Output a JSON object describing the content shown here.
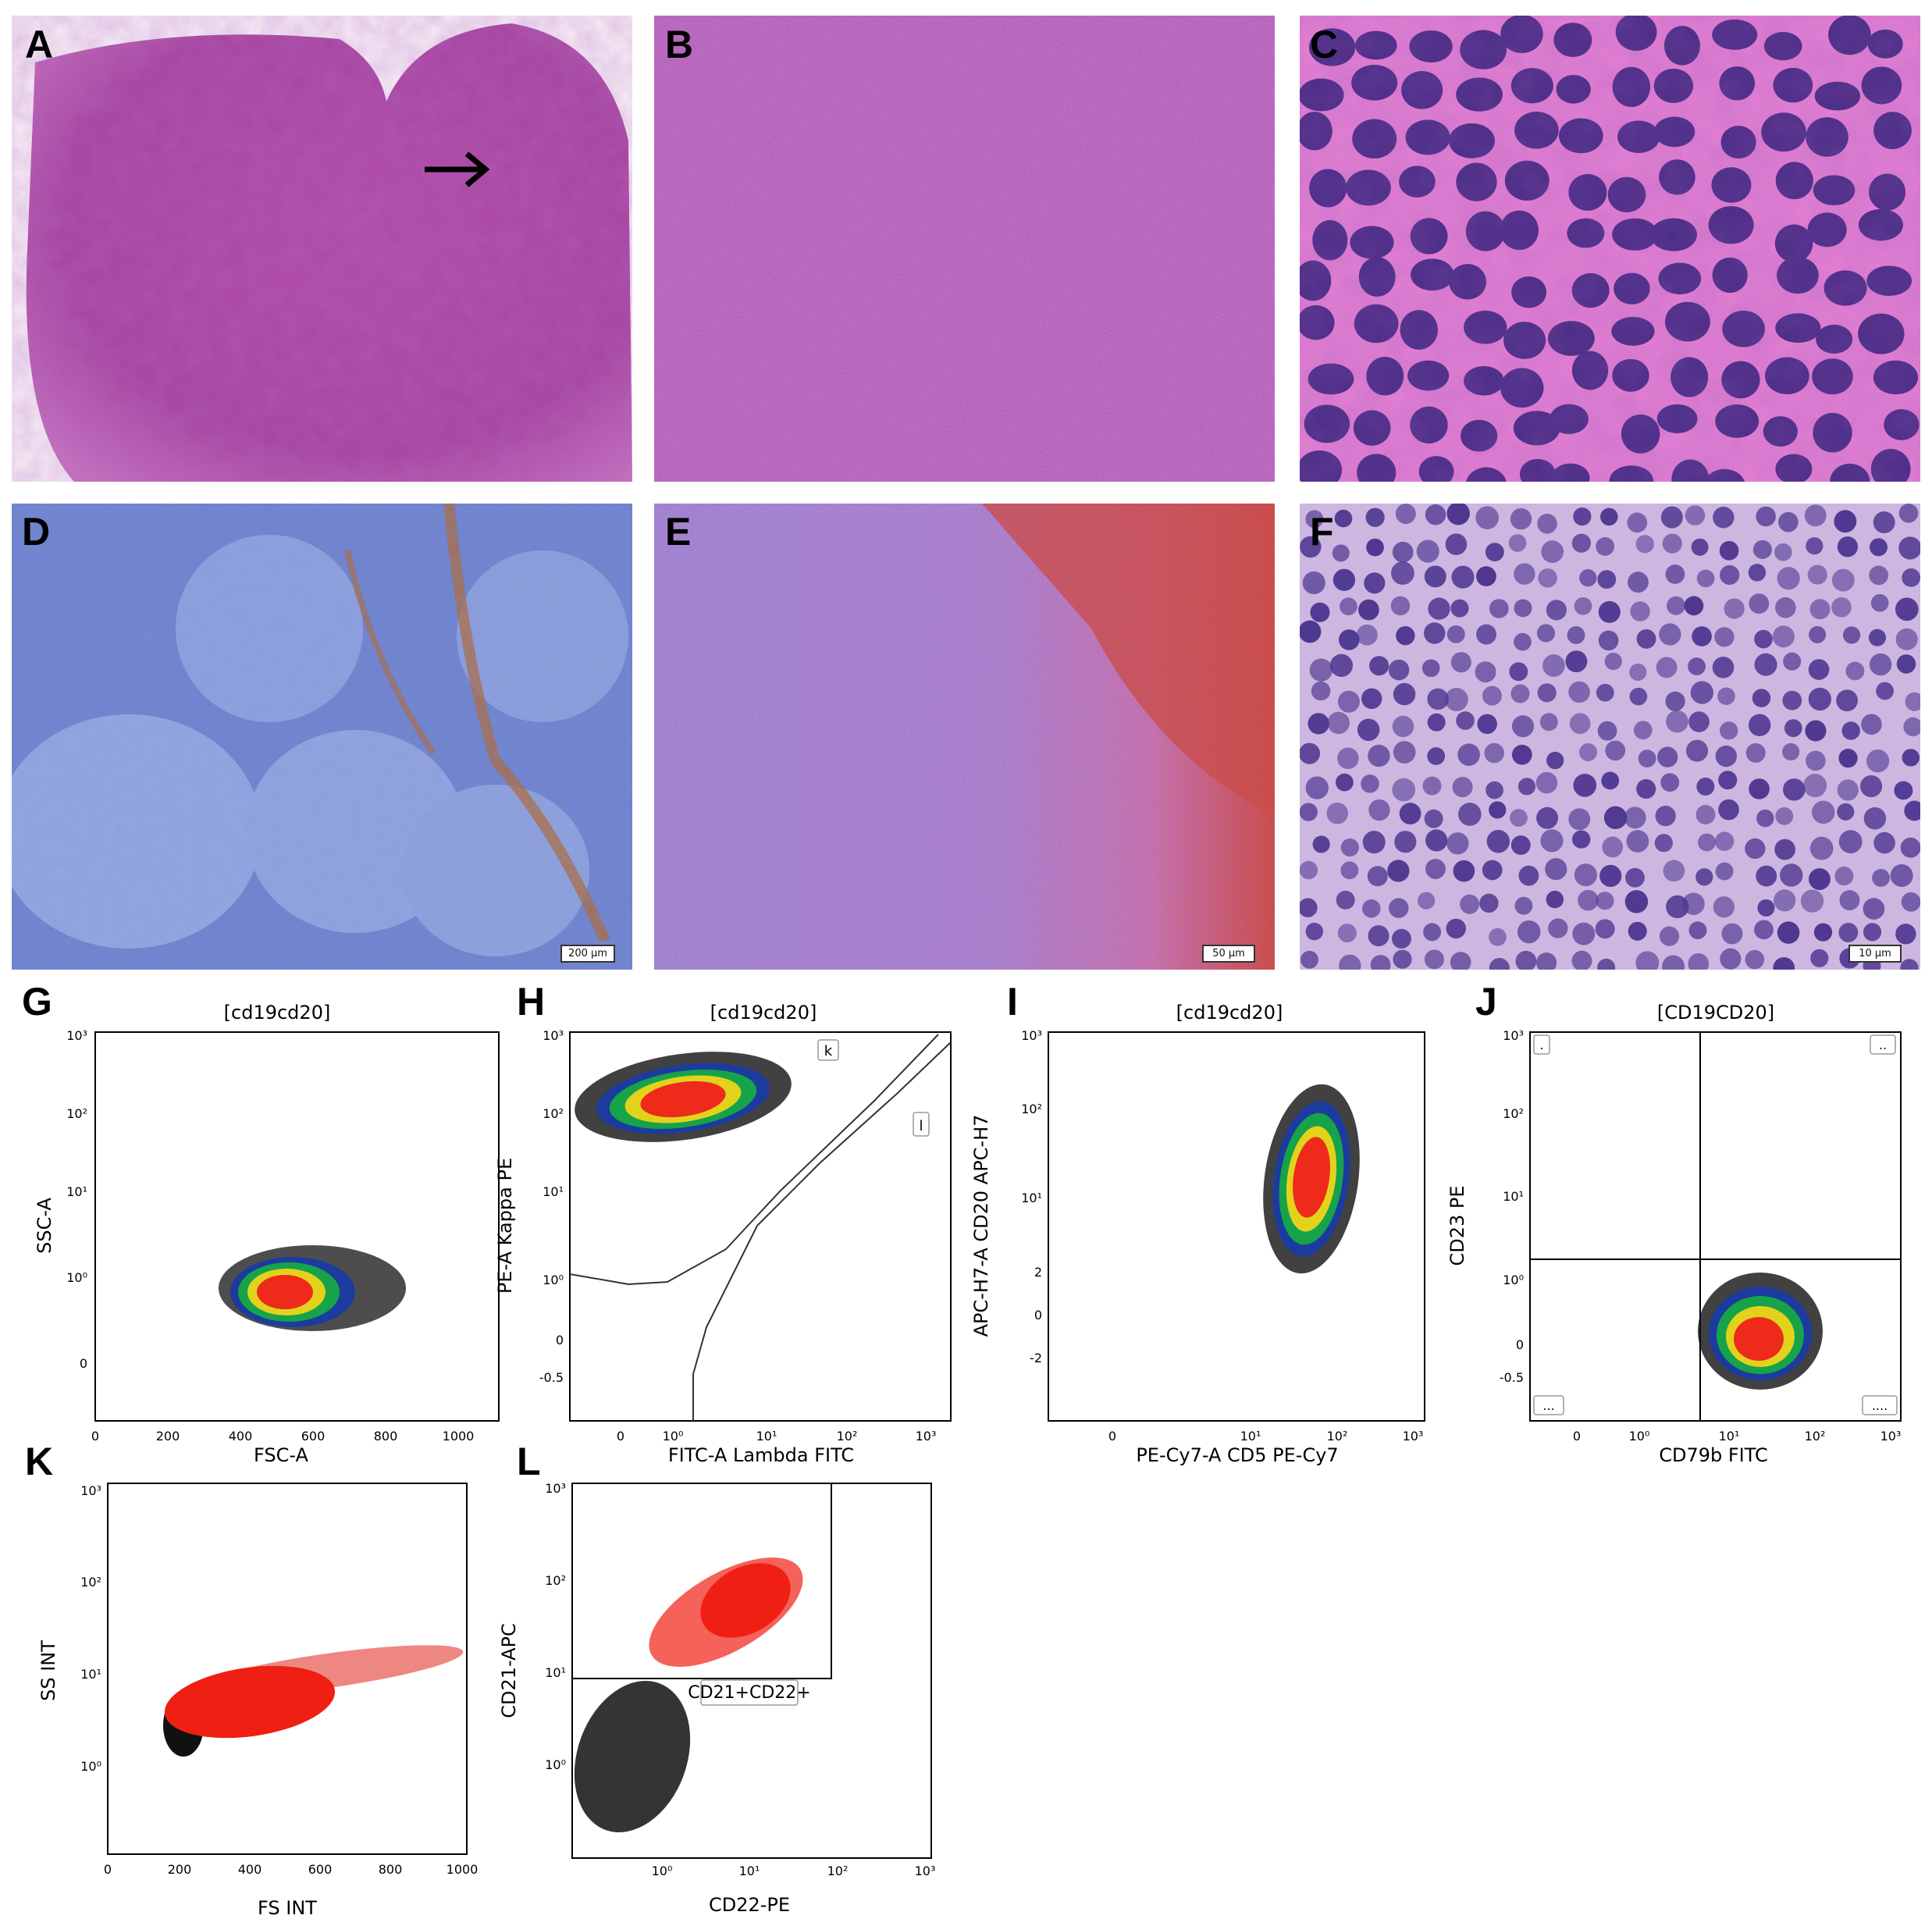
{
  "figure": {
    "panel_letters": [
      "A",
      "B",
      "C",
      "D",
      "E",
      "F",
      "G",
      "H",
      "I",
      "J",
      "K",
      "L"
    ],
    "scale_bars": {
      "D": "200 µm",
      "E": "50 µm",
      "F": "10 µm"
    },
    "colors": {
      "he_pink": "#c25fb3",
      "he_purple": "#7a3a9a",
      "ihc_blue": "#7d8fd6",
      "ihc_brown": "#b5652a",
      "rbc_red": "#d8452a"
    }
  },
  "flow": {
    "G": {
      "title": "[cd19cd20]",
      "xlabel": "FSC-A",
      "ylabel": "SSC-A",
      "xticks": [
        "0",
        "200",
        "400",
        "600",
        "800",
        "1000"
      ],
      "yticks": [
        "0",
        "10⁰",
        "10¹",
        "10²",
        "10³"
      ]
    },
    "H": {
      "title": "[cd19cd20]",
      "xlabel": "FITC-A Lambda FITC",
      "ylabel": "PE-A Kappa PE",
      "xticks": [
        "0",
        "10⁰",
        "10¹",
        "10²",
        "10³"
      ],
      "yticks": [
        "-0.5",
        "0",
        "10⁰",
        "10¹",
        "10²",
        "10³"
      ],
      "gates": [
        "k",
        "l"
      ]
    },
    "I": {
      "title": "[cd19cd20]",
      "xlabel": "PE-Cy7-A CD5 PE-Cy7",
      "ylabel": "APC-H7-A CD20 APC-H7",
      "xticks": [
        "0",
        "10¹",
        "10²",
        "10³"
      ],
      "yticks": [
        "-2",
        "0",
        "2",
        "10¹",
        "10²",
        "10³"
      ]
    },
    "J": {
      "title": "[CD19CD20]",
      "xlabel": "CD79b FITC",
      "ylabel": "CD23 PE",
      "xticks": [
        "0",
        "10⁰",
        "10¹",
        "10²",
        "10³"
      ],
      "yticks": [
        "-0.5",
        "0",
        "10⁰",
        "10¹",
        "10²",
        "10³"
      ],
      "quadrant_labels": [
        ".",
        "..",
        "...",
        "...."
      ]
    },
    "K": {
      "xlabel": "FS INT",
      "ylabel": "SS INT",
      "xticks": [
        "0",
        "200",
        "400",
        "600",
        "800",
        "1000"
      ],
      "yticks": [
        "10⁰",
        "10¹",
        "10²",
        "10³"
      ]
    },
    "L": {
      "xlabel": "CD22-PE",
      "ylabel": "CD21-APC",
      "xticks": [
        "10⁰",
        "10¹",
        "10²",
        "10³"
      ],
      "yticks": [
        "10⁰",
        "10¹",
        "10²",
        "10³"
      ],
      "gate_label": "CD21+CD22+"
    }
  }
}
